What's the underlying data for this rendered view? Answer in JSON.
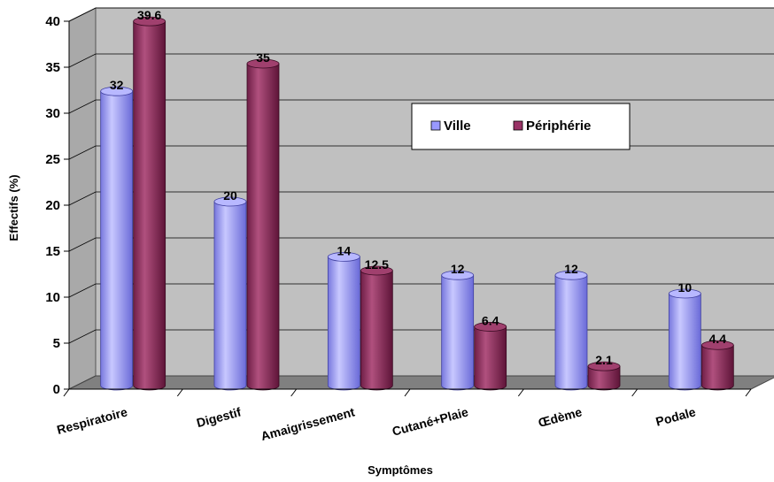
{
  "chart_data": {
    "type": "bar",
    "categories": [
      "Respiratoire",
      "Digestif",
      "Amaigrissement",
      "Cutané+Plaie",
      "Œdème",
      "Podale"
    ],
    "series": [
      {
        "name": "Ville",
        "values": [
          32,
          20,
          14,
          12,
          12,
          10
        ],
        "color": "#9999FF"
      },
      {
        "name": "Périphérie",
        "values": [
          39.6,
          35,
          12.5,
          6.4,
          2.1,
          4.4
        ],
        "color": "#993366"
      }
    ],
    "xlabel": "Symptômes",
    "ylabel": "Effectifs (%)",
    "ylim": [
      0,
      40
    ],
    "yticks": [
      0,
      5,
      10,
      15,
      20,
      25,
      30,
      35,
      40
    ],
    "grid": true,
    "legend_position": "right",
    "style": "3d-cylinder"
  }
}
